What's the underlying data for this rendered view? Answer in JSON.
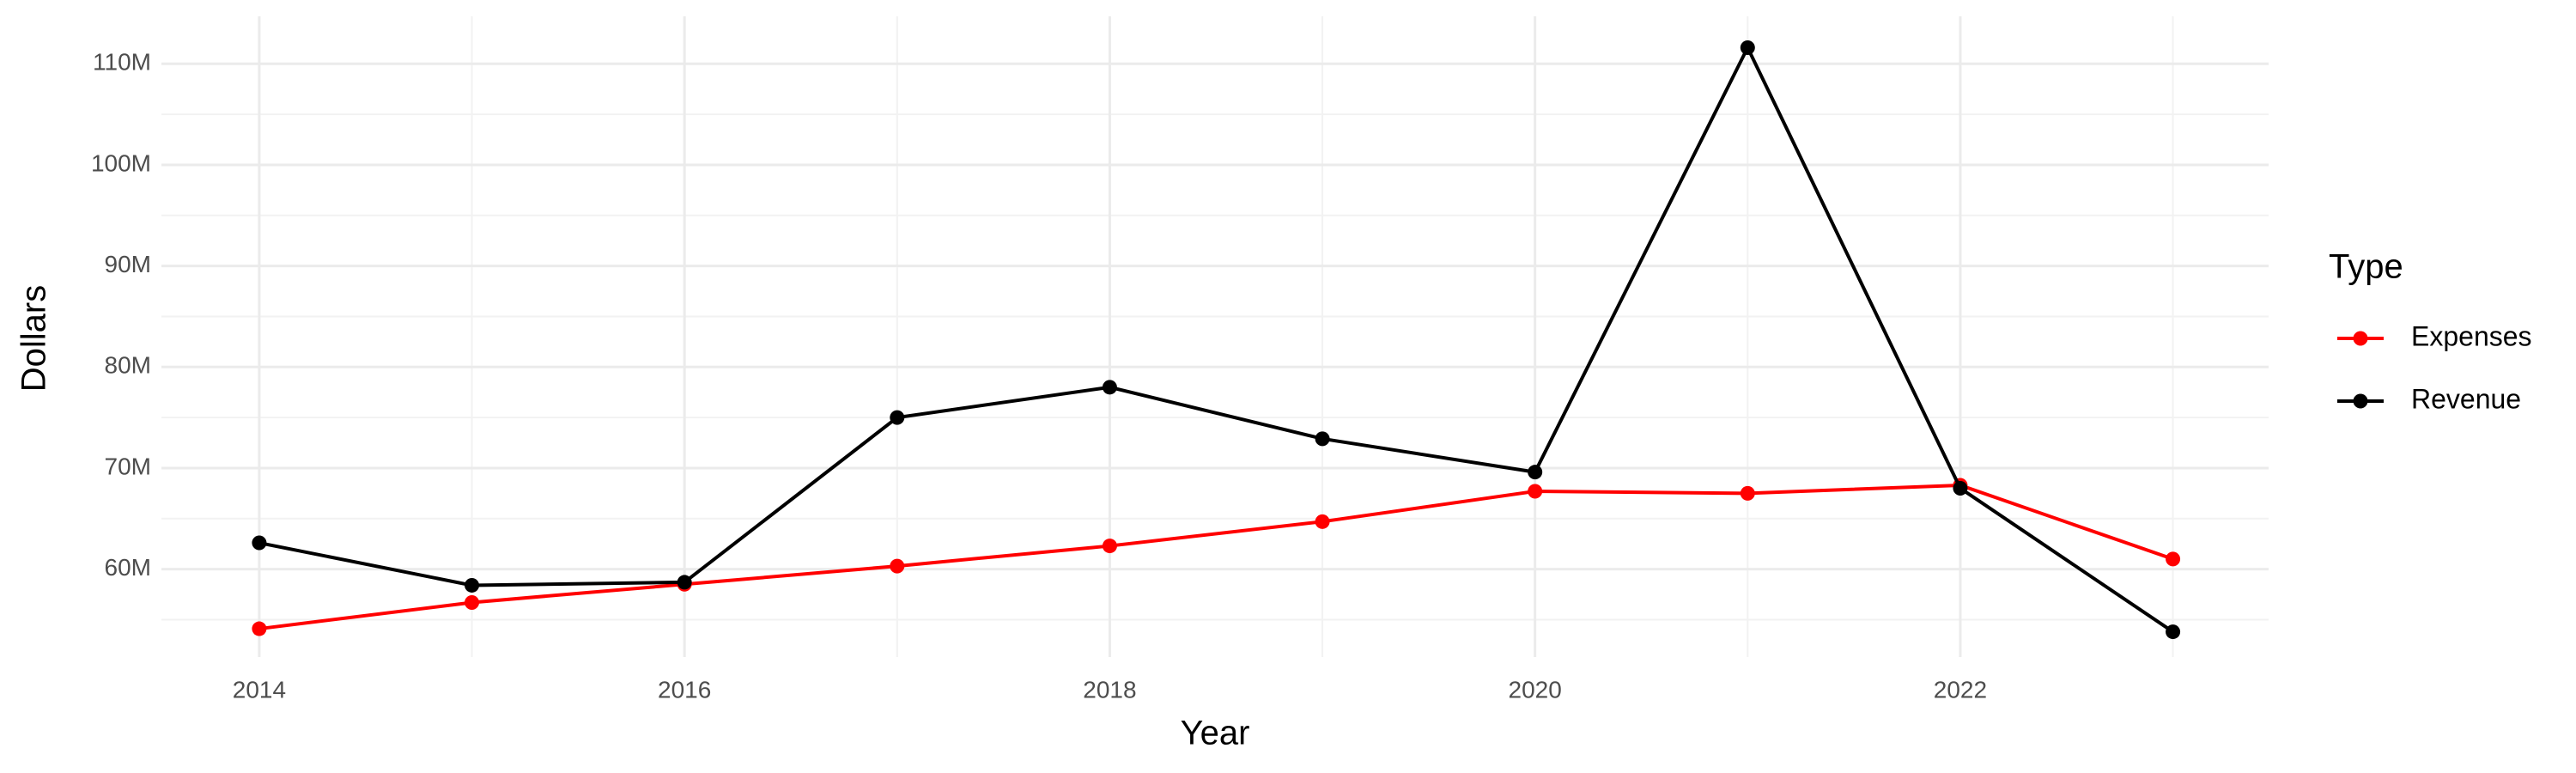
{
  "chart_data": {
    "type": "line",
    "x_label": "Year",
    "y_label": "Dollars",
    "legend_title": "Type",
    "x": [
      2014,
      2015,
      2016,
      2017,
      2018,
      2019,
      2020,
      2021,
      2022,
      2023
    ],
    "series": [
      {
        "name": "Expenses",
        "color": "#ff0000",
        "values": [
          54100000,
          56700000,
          58500000,
          60300000,
          62300000,
          64700000,
          67700000,
          67500000,
          68300000,
          61000000
        ]
      },
      {
        "name": "Revenue",
        "color": "#000000",
        "values": [
          62600000,
          58400000,
          58700000,
          75000000,
          78000000,
          72900000,
          69600000,
          111600000,
          68000000,
          53800000
        ]
      }
    ],
    "xlim": [
      2013.54,
      2023.45
    ],
    "xticks": [
      2014,
      2016,
      2018,
      2020,
      2022
    ],
    "ylim": [
      51300000,
      114700000
    ],
    "yticks": [
      {
        "value": 60000000,
        "label": "60M"
      },
      {
        "value": 70000000,
        "label": "70M"
      },
      {
        "value": 80000000,
        "label": "80M"
      },
      {
        "value": 90000000,
        "label": "90M"
      },
      {
        "value": 100000000,
        "label": "100M"
      },
      {
        "value": 110000000,
        "label": "110M"
      }
    ],
    "grid": true,
    "legend_position": "right"
  }
}
